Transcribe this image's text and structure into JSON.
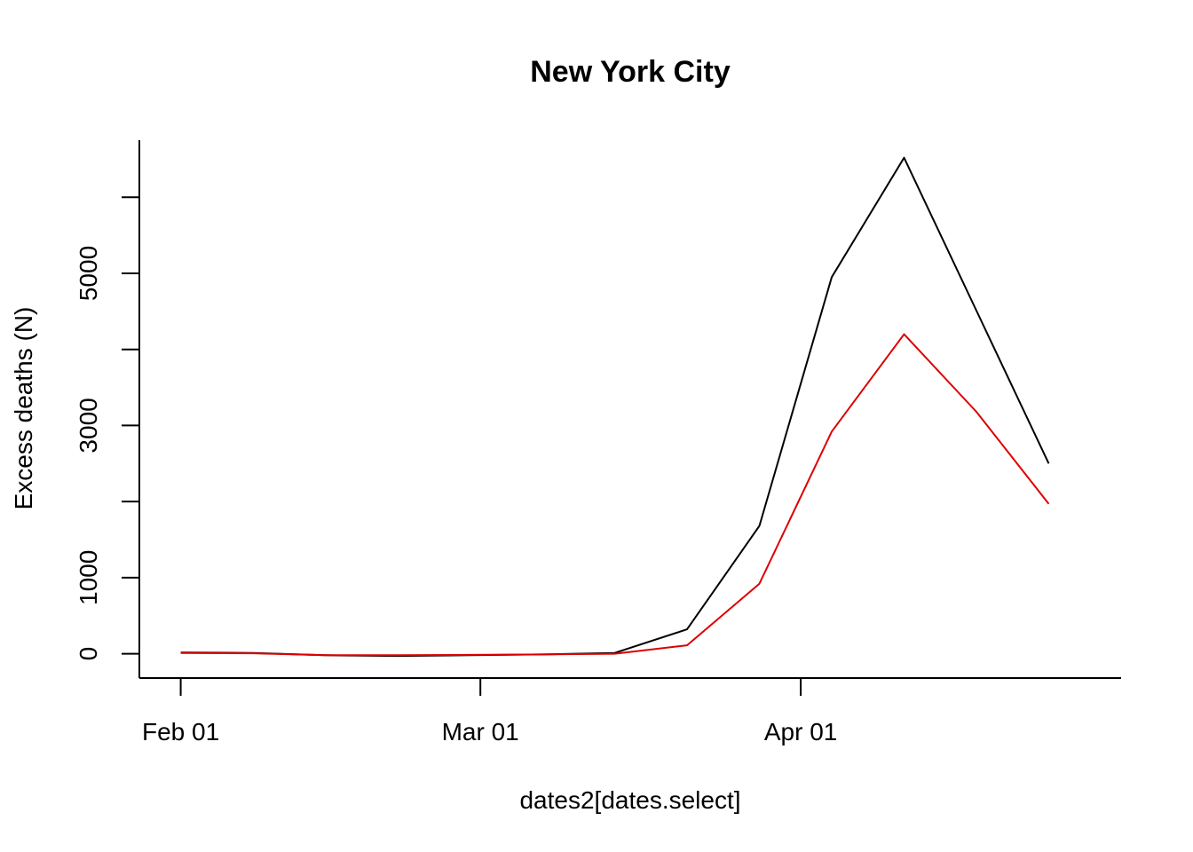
{
  "chart_data": {
    "type": "line",
    "title": "New York City",
    "xlabel": "dates2[dates.select]",
    "ylabel": "Excess deaths (N)",
    "x_ticks": [
      {
        "date": "2020-02-01",
        "label": "Feb 01"
      },
      {
        "date": "2020-03-01",
        "label": "Mar 01"
      },
      {
        "date": "2020-04-01",
        "label": "Apr 01"
      }
    ],
    "y_ticks": [
      0,
      1000,
      2000,
      3000,
      4000,
      5000,
      6000
    ],
    "y_tick_labels": [
      "0",
      "1000",
      "",
      "3000",
      "",
      "5000",
      ""
    ],
    "x": [
      "2020-02-01",
      "2020-02-08",
      "2020-02-15",
      "2020-02-22",
      "2020-02-29",
      "2020-03-07",
      "2020-03-14",
      "2020-03-21",
      "2020-03-28",
      "2020-04-04",
      "2020-04-11",
      "2020-04-18",
      "2020-04-25"
    ],
    "series": [
      {
        "color": "#000000",
        "values": [
          15,
          10,
          -20,
          -30,
          -20,
          -10,
          10,
          320,
          1680,
          4950,
          6520,
          4510,
          2500
        ]
      },
      {
        "color": "#dd0000",
        "values": [
          10,
          5,
          -20,
          -20,
          -15,
          -10,
          0,
          110,
          920,
          2920,
          4200,
          3180,
          1970
        ]
      }
    ],
    "xlim": [
      "2020-01-28",
      "2020-05-02"
    ],
    "ylim": [
      -320,
      6750
    ],
    "grid": false,
    "legend": "none"
  }
}
